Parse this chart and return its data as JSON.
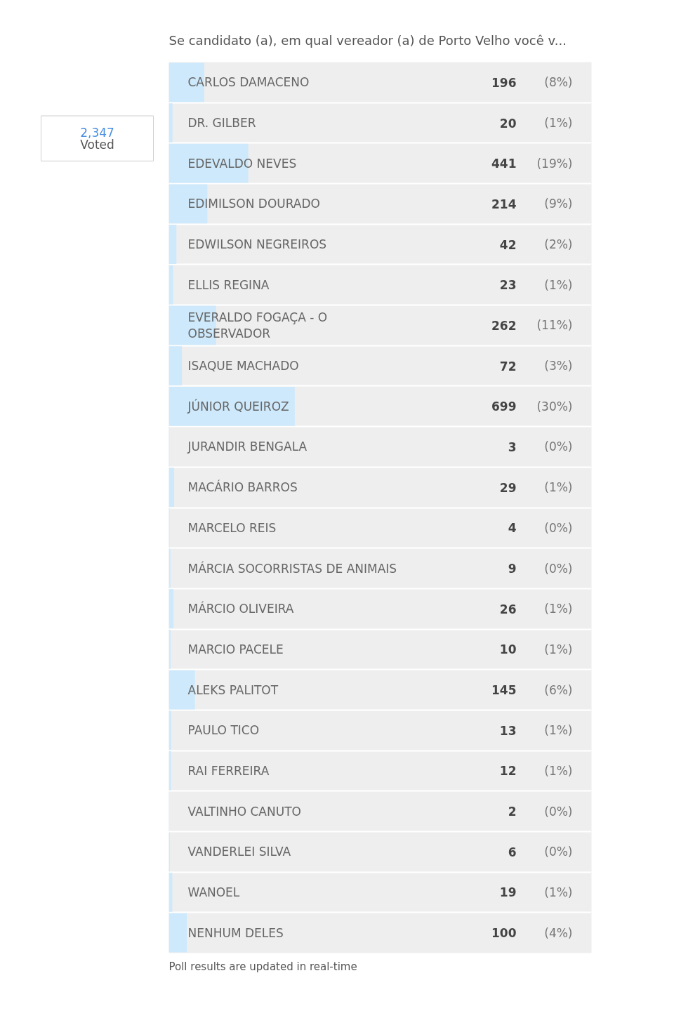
{
  "chart_data": {
    "type": "bar",
    "orientation": "horizontal",
    "title": "Se candidato (a), em qual vereador (a) de Porto Velho você v...",
    "categories": [
      "CARLOS DAMACENO",
      "DR. GILBER",
      "EDEVALDO NEVES",
      "EDIMILSON DOURADO",
      "EDWILSON NEGREIROS",
      "ELLIS REGINA",
      "EVERALDO FOGAÇA - O OBSERVADOR",
      "ISAQUE MACHADO",
      "JÚNIOR QUEIROZ",
      "JURANDIR BENGALA",
      "MACÁRIO BARROS",
      "MARCELO REIS",
      "MÁRCIA SOCORRISTAS DE ANIMAIS",
      "MÁRCIO OLIVEIRA",
      "MARCIO PACELE",
      "ALEKS PALITOT",
      "PAULO TICO",
      "RAI FERREIRA",
      "VALTINHO CANUTO",
      "VANDERLEI SILVA",
      "WANOEL",
      "NENHUM DELES"
    ],
    "values": [
      196,
      20,
      441,
      214,
      42,
      23,
      262,
      72,
      699,
      3,
      29,
      4,
      9,
      26,
      10,
      145,
      13,
      12,
      2,
      6,
      19,
      100
    ],
    "color": "#cde9fb",
    "xlim": [
      0,
      2347
    ],
    "tick_labels": false,
    "grid": "y",
    "data_labels": true,
    "annotations": [
      "2,347",
      "Voted",
      "(8%)",
      "(1%)",
      "(19%)",
      "(9%)",
      "(2%)",
      "(1%)",
      "(11%)",
      "(3%)",
      "(30%)",
      "(0%)",
      "(1%)",
      "(0%)",
      "(0%)",
      "(1%)",
      "(1%)",
      "(6%)",
      "(1%)",
      "(1%)",
      "(0%)",
      "(0%)",
      "(1%)",
      "(4%)",
      "Poll results are updated in real-time"
    ]
  }
}
